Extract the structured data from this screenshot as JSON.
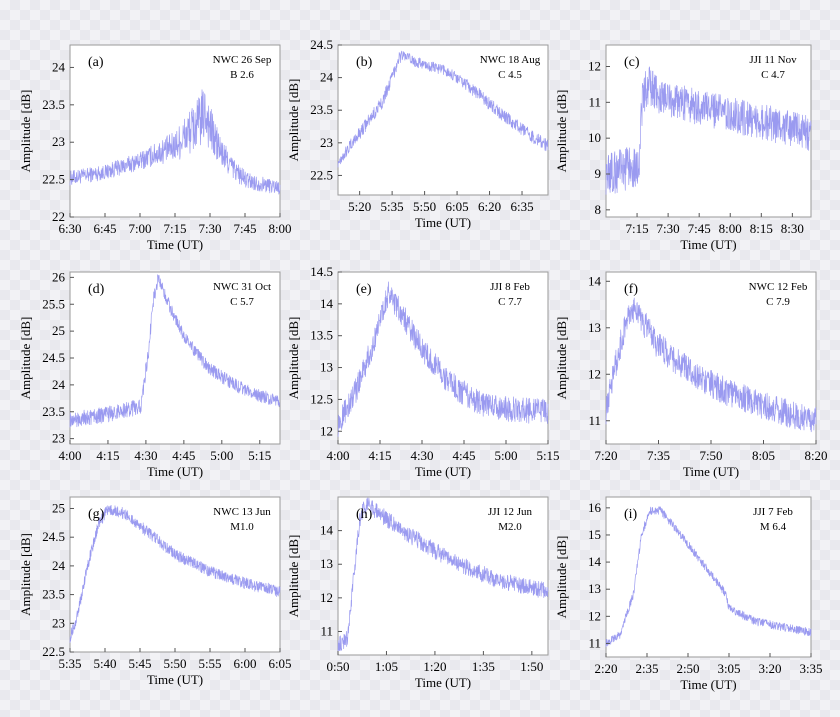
{
  "chart_data": [
    {
      "id": "a",
      "type": "line",
      "panel_label": "(a)",
      "annotation": [
        "NWC 26 Sep",
        "B 2.6"
      ],
      "xlabel": "Time (UT)",
      "ylabel": "Amplitude [dB]",
      "xticks": [
        "6:30",
        "6:45",
        "7:00",
        "7:15",
        "7:30",
        "7:45",
        "8:00"
      ],
      "xrange_min": [
        390,
        480
      ],
      "yticks": [
        22,
        22.5,
        23,
        23.5,
        24
      ],
      "ylim": [
        22,
        24.3
      ],
      "series_color": "#9a9af0",
      "x_min": [
        390,
        405,
        420,
        435,
        440,
        445,
        448,
        451,
        455,
        460,
        465,
        470,
        480
      ],
      "y": [
        22.52,
        22.6,
        22.75,
        22.95,
        23.1,
        23.25,
        23.4,
        23.1,
        22.85,
        22.65,
        22.5,
        22.45,
        22.4
      ],
      "noise": [
        0.1,
        0.1,
        0.12,
        0.2,
        0.3,
        0.35,
        0.4,
        0.3,
        0.2,
        0.15,
        0.12,
        0.1,
        0.1
      ]
    },
    {
      "id": "b",
      "type": "line",
      "panel_label": "(b)",
      "annotation": [
        "NWC 18 Aug",
        "C 4.5"
      ],
      "xlabel": "Time (UT)",
      "ylabel": "Amplitude [dB]",
      "xticks": [
        "5:20",
        "5:35",
        "5:50",
        "6:05",
        "6:20",
        "6:35"
      ],
      "xrange_min": [
        310,
        407
      ],
      "yticks": [
        22.5,
        23,
        23.5,
        24,
        24.5
      ],
      "ylim": [
        22.2,
        24.5
      ],
      "series_color": "#9a9af0",
      "x_min": [
        310,
        320,
        330,
        335,
        338,
        340,
        345,
        360,
        365,
        375,
        385,
        395,
        407
      ],
      "y": [
        22.7,
        23.15,
        23.6,
        24.0,
        24.3,
        24.35,
        24.25,
        24.1,
        24.0,
        23.75,
        23.45,
        23.2,
        22.95
      ],
      "noise": [
        0.08,
        0.1,
        0.1,
        0.1,
        0.1,
        0.08,
        0.08,
        0.08,
        0.08,
        0.1,
        0.1,
        0.1,
        0.1
      ]
    },
    {
      "id": "c",
      "type": "line",
      "panel_label": "(c)",
      "annotation": [
        "JJI 11 Nov",
        "C 4.7"
      ],
      "xlabel": "Time (UT)",
      "ylabel": "Amplitude [dB]",
      "xticks": [
        "7:15",
        "7:30",
        "7:45",
        "8:00",
        "8:15",
        "8:30"
      ],
      "xrange_min": [
        420,
        519
      ],
      "yticks": [
        8,
        9,
        10,
        11,
        12
      ],
      "ylim": [
        7.8,
        12.6
      ],
      "series_color": "#9a9af0",
      "x_min": [
        420,
        428,
        436,
        437,
        440,
        445,
        455,
        470,
        485,
        500,
        519
      ],
      "y": [
        9.0,
        9.1,
        9.3,
        10.8,
        11.5,
        11.2,
        11.0,
        10.8,
        10.6,
        10.4,
        10.1
      ],
      "noise": [
        0.6,
        0.6,
        0.6,
        0.6,
        0.6,
        0.5,
        0.5,
        0.5,
        0.5,
        0.5,
        0.5
      ]
    },
    {
      "id": "d",
      "type": "line",
      "panel_label": "(d)",
      "annotation": [
        "NWC 31 Oct",
        "C 5.7"
      ],
      "xlabel": "Time (UT)",
      "ylabel": "Amplitude [dB]",
      "xticks": [
        "4:00",
        "4:15",
        "4:30",
        "4:45",
        "5:00",
        "5:15"
      ],
      "xrange_min": [
        240,
        323
      ],
      "yticks": [
        23,
        23.5,
        24,
        24.5,
        25,
        25.5,
        26
      ],
      "ylim": [
        22.9,
        26.1
      ],
      "series_color": "#9a9af0",
      "x_min": [
        240,
        255,
        268,
        271,
        273,
        275,
        278,
        285,
        295,
        305,
        315,
        323
      ],
      "y": [
        23.35,
        23.45,
        23.6,
        24.6,
        25.6,
        26.0,
        25.6,
        24.9,
        24.3,
        24.0,
        23.8,
        23.7
      ],
      "noise": [
        0.15,
        0.15,
        0.15,
        0.15,
        0.15,
        0.12,
        0.12,
        0.12,
        0.12,
        0.12,
        0.12,
        0.12
      ]
    },
    {
      "id": "e",
      "type": "line",
      "panel_label": "(e)",
      "annotation": [
        "JJI 8 Feb",
        "C 7.7"
      ],
      "xlabel": "Time (UT)",
      "ylabel": "Amplitude [dB]",
      "xticks": [
        "4:00",
        "4:15",
        "4:30",
        "4:45",
        "5:00",
        "5:15"
      ],
      "xrange_min": [
        240,
        315
      ],
      "yticks": [
        12,
        12.5,
        13,
        13.5,
        14,
        14.5
      ],
      "ylim": [
        11.8,
        14.5
      ],
      "series_color": "#9a9af0",
      "x_min": [
        240,
        246,
        252,
        256,
        258,
        262,
        270,
        280,
        290,
        300,
        315
      ],
      "y": [
        12.1,
        12.6,
        13.3,
        13.9,
        14.15,
        13.9,
        13.3,
        12.75,
        12.45,
        12.35,
        12.3
      ],
      "noise": [
        0.2,
        0.2,
        0.2,
        0.2,
        0.2,
        0.2,
        0.2,
        0.2,
        0.2,
        0.2,
        0.2
      ]
    },
    {
      "id": "f",
      "type": "line",
      "panel_label": "(f)",
      "annotation": [
        "NWC 12 Feb",
        "C 7.9"
      ],
      "xlabel": "Time (UT)",
      "ylabel": "Amplitude [dB]",
      "xticks": [
        "7:20",
        "7:35",
        "7:50",
        "8:05",
        "8:20"
      ],
      "xrange_min": [
        440,
        500
      ],
      "yticks": [
        11,
        12,
        13,
        14
      ],
      "ylim": [
        10.5,
        14.2
      ],
      "series_color": "#9a9af0",
      "x_min": [
        440,
        443,
        446,
        448,
        450,
        455,
        465,
        475,
        490,
        500
      ],
      "y": [
        11.2,
        12.3,
        13.2,
        13.4,
        13.2,
        12.6,
        12.0,
        11.6,
        11.2,
        11.0
      ],
      "noise": [
        0.3,
        0.3,
        0.3,
        0.3,
        0.3,
        0.3,
        0.3,
        0.3,
        0.3,
        0.3
      ]
    },
    {
      "id": "g",
      "type": "line",
      "panel_label": "(g)",
      "annotation": [
        "NWC 13 Jun",
        "M1.0"
      ],
      "xlabel": "Time (UT)",
      "ylabel": "Amplitude [dB]",
      "xticks": [
        "5:35",
        "5:40",
        "5:45",
        "5:50",
        "5:55",
        "6:00",
        "6:05"
      ],
      "xrange_min": [
        335,
        365
      ],
      "yticks": [
        22.5,
        23,
        23.5,
        24,
        24.5,
        25
      ],
      "ylim": [
        22.5,
        25.2
      ],
      "series_color": "#9a9af0",
      "x_min": [
        335,
        336,
        337.5,
        339,
        340.5,
        343,
        346,
        350,
        355,
        360,
        365
      ],
      "y": [
        22.75,
        23.1,
        24.0,
        24.7,
        25.0,
        24.9,
        24.6,
        24.2,
        23.9,
        23.7,
        23.55
      ],
      "noise": [
        0.1,
        0.1,
        0.1,
        0.1,
        0.1,
        0.1,
        0.1,
        0.1,
        0.1,
        0.1,
        0.1
      ]
    },
    {
      "id": "h",
      "type": "line",
      "panel_label": "(h)",
      "annotation": [
        "JJI 12 Jun",
        "M2.0"
      ],
      "xlabel": "Time (UT)",
      "ylabel": "Amplitude [dB]",
      "xticks": [
        "0:50",
        "1:05",
        "1:20",
        "1:35",
        "1:50"
      ],
      "xrange_min": [
        50,
        115
      ],
      "yticks": [
        11,
        12,
        13,
        14
      ],
      "ylim": [
        10.3,
        15.0
      ],
      "series_color": "#9a9af0",
      "x_min": [
        50,
        53,
        55,
        57,
        59,
        63,
        70,
        80,
        90,
        100,
        115
      ],
      "y": [
        10.6,
        10.8,
        12.8,
        14.5,
        14.8,
        14.5,
        14.0,
        13.4,
        12.9,
        12.5,
        12.2
      ],
      "noise": [
        0.25,
        0.25,
        0.25,
        0.25,
        0.25,
        0.25,
        0.25,
        0.25,
        0.25,
        0.25,
        0.25
      ]
    },
    {
      "id": "i",
      "type": "line",
      "panel_label": "(i)",
      "annotation": [
        "JJI 7 Feb",
        "M 6.4"
      ],
      "xlabel": "Time (UT)",
      "ylabel": "Amplitude [dB]",
      "xticks": [
        "2:20",
        "2:35",
        "2:50",
        "3:05",
        "3:20",
        "3:35"
      ],
      "xrange_min": [
        140,
        215
      ],
      "yticks": [
        11,
        12,
        13,
        14,
        15,
        16
      ],
      "ylim": [
        10.5,
        16.4
      ],
      "series_color": "#9a9af0",
      "x_min": [
        140,
        145,
        150,
        153,
        156,
        160,
        165,
        172,
        178,
        184,
        185,
        195,
        205,
        215
      ],
      "y": [
        11.0,
        11.3,
        12.8,
        15.0,
        15.9,
        15.9,
        15.3,
        14.4,
        13.6,
        12.8,
        12.3,
        11.8,
        11.6,
        11.4
      ],
      "noise": [
        0.15,
        0.15,
        0.15,
        0.15,
        0.15,
        0.15,
        0.15,
        0.15,
        0.15,
        0.15,
        0.15,
        0.15,
        0.15,
        0.15
      ]
    }
  ]
}
